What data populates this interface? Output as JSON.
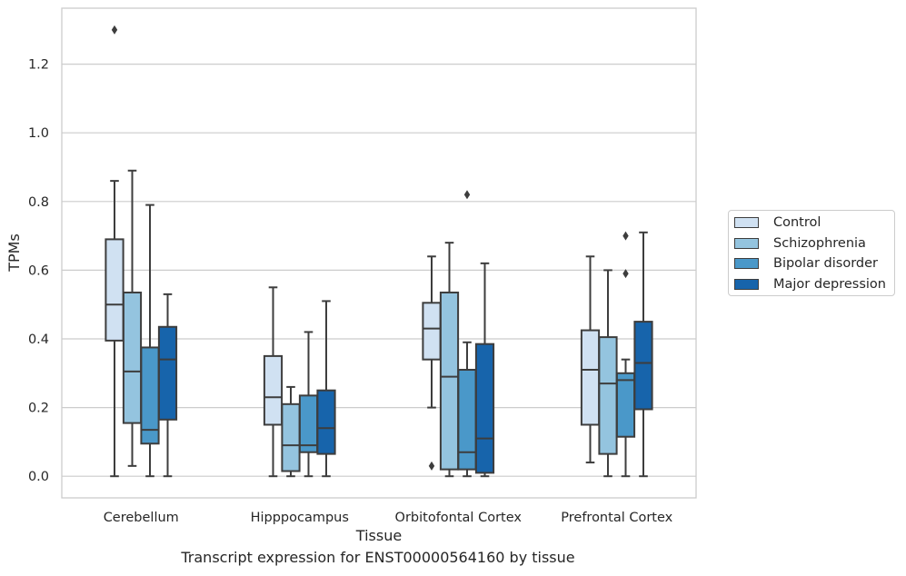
{
  "caption": "Transcript expression for ENST00000564160 by tissue",
  "chart_data": {
    "type": "box",
    "xlabel": "Tissue",
    "ylabel": "TPMs",
    "ylim": [
      -0.063,
      1.363
    ],
    "yticks": [
      "0.0",
      "0.2",
      "0.4",
      "0.6",
      "0.8",
      "1.0",
      "1.2"
    ],
    "grid": "horizontal",
    "legend_position": "right",
    "categories": [
      "Cerebellum",
      "Hipppocampus",
      "Orbitofontal Cortex",
      "Prefrontal Cortex"
    ],
    "series": [
      {
        "name": "Control",
        "color": "#d0e1f2",
        "boxes": [
          {
            "whislo": 0.0,
            "q1": 0.395,
            "med": 0.5,
            "q3": 0.69,
            "whishi": 0.86,
            "fliers": [
              1.3
            ]
          },
          {
            "whislo": 0.0,
            "q1": 0.15,
            "med": 0.23,
            "q3": 0.35,
            "whishi": 0.55,
            "fliers": []
          },
          {
            "whislo": 0.2,
            "q1": 0.34,
            "med": 0.43,
            "q3": 0.505,
            "whishi": 0.64,
            "fliers": [
              0.03
            ]
          },
          {
            "whislo": 0.04,
            "q1": 0.15,
            "med": 0.31,
            "q3": 0.425,
            "whishi": 0.64,
            "fliers": []
          }
        ]
      },
      {
        "name": "Schizophrenia",
        "color": "#94c4df",
        "boxes": [
          {
            "whislo": 0.03,
            "q1": 0.155,
            "med": 0.305,
            "q3": 0.535,
            "whishi": 0.89,
            "fliers": []
          },
          {
            "whislo": 0.0,
            "q1": 0.015,
            "med": 0.09,
            "q3": 0.21,
            "whishi": 0.26,
            "fliers": []
          },
          {
            "whislo": 0.0,
            "q1": 0.02,
            "med": 0.29,
            "q3": 0.535,
            "whishi": 0.68,
            "fliers": []
          },
          {
            "whislo": 0.0,
            "q1": 0.065,
            "med": 0.27,
            "q3": 0.405,
            "whishi": 0.6,
            "fliers": []
          }
        ]
      },
      {
        "name": "Bipolar disorder",
        "color": "#4a98c9",
        "boxes": [
          {
            "whislo": 0.0,
            "q1": 0.095,
            "med": 0.135,
            "q3": 0.375,
            "whishi": 0.79,
            "fliers": []
          },
          {
            "whislo": 0.0,
            "q1": 0.07,
            "med": 0.09,
            "q3": 0.235,
            "whishi": 0.42,
            "fliers": []
          },
          {
            "whislo": 0.0,
            "q1": 0.02,
            "med": 0.07,
            "q3": 0.31,
            "whishi": 0.39,
            "fliers": [
              0.82
            ]
          },
          {
            "whislo": 0.0,
            "q1": 0.115,
            "med": 0.28,
            "q3": 0.3,
            "whishi": 0.34,
            "fliers": [
              0.59,
              0.7
            ]
          }
        ]
      },
      {
        "name": "Major depression",
        "color": "#1764ab",
        "boxes": [
          {
            "whislo": 0.0,
            "q1": 0.165,
            "med": 0.34,
            "q3": 0.435,
            "whishi": 0.53,
            "fliers": []
          },
          {
            "whislo": 0.0,
            "q1": 0.065,
            "med": 0.14,
            "q3": 0.25,
            "whishi": 0.51,
            "fliers": []
          },
          {
            "whislo": 0.0,
            "q1": 0.01,
            "med": 0.11,
            "q3": 0.385,
            "whishi": 0.62,
            "fliers": []
          },
          {
            "whislo": 0.0,
            "q1": 0.195,
            "med": 0.33,
            "q3": 0.45,
            "whishi": 0.71,
            "fliers": []
          }
        ]
      }
    ]
  }
}
